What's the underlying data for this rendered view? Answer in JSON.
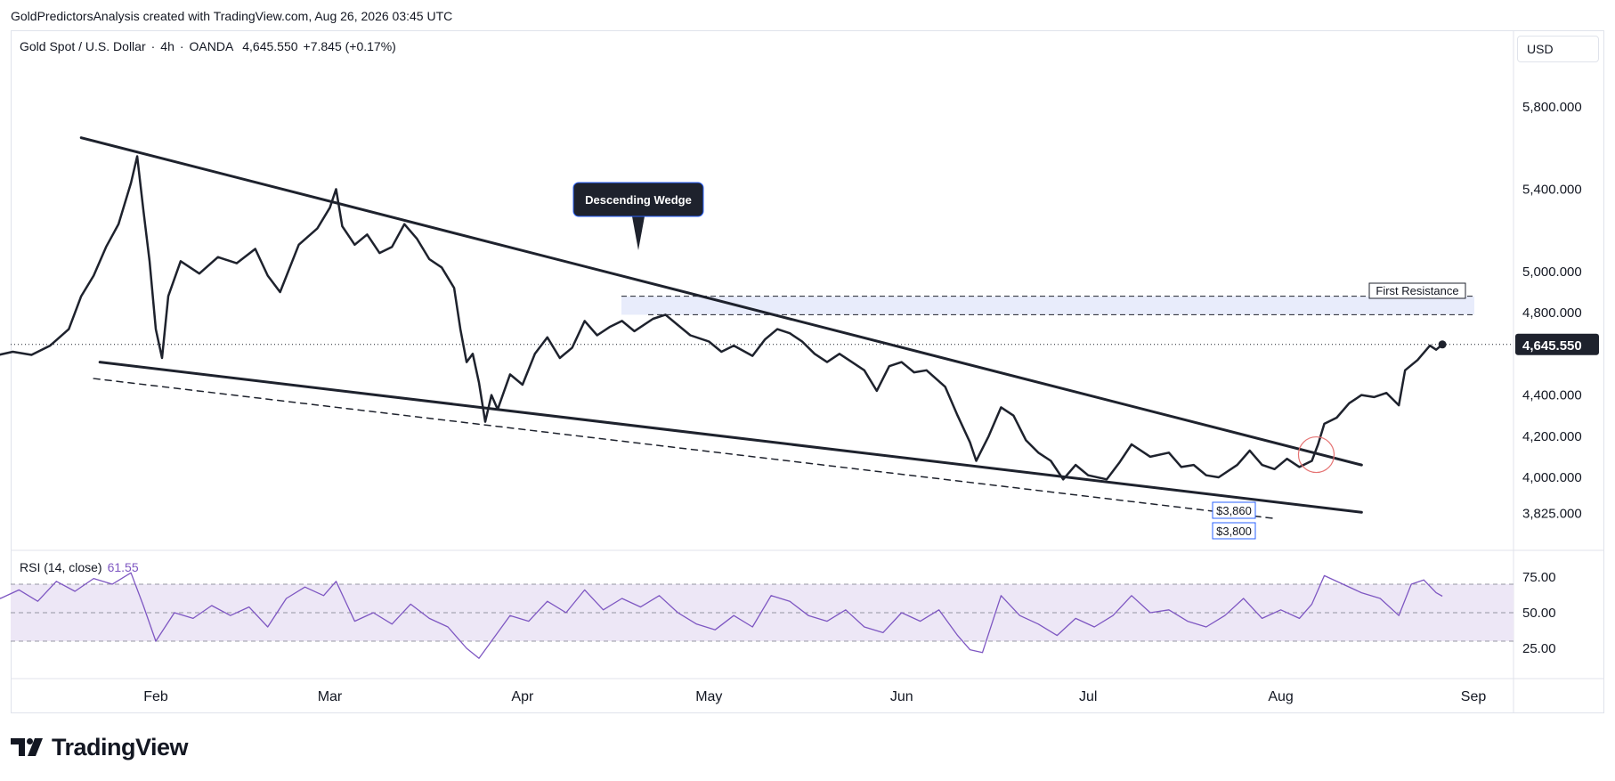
{
  "header": {
    "attribution": "GoldPredictorsAnalysis created with TradingView.com, Aug 26, 2026 03:45 UTC"
  },
  "legend": {
    "symbol": "Gold Spot / U.S. Dollar",
    "interval": "4h",
    "source": "OANDA",
    "last": "4,645.550",
    "change": "+7.845 (+0.17%)"
  },
  "currency": "USD",
  "rsi": {
    "label": "RSI (14, close)",
    "value": "61.55"
  },
  "footer": {
    "brand": "TradingView"
  },
  "colors": {
    "price_line": "#1e222d",
    "rsi_line": "#7e57c2",
    "rsi_band": "#ede7f6",
    "resistance_zone": "#e8ecfb",
    "callout_bg": "#1e222d",
    "callout_border": "#2962ff",
    "breakout_circle": "#e57373"
  },
  "chart_data": [
    {
      "type": "line",
      "series": [
        {
          "name": "Gold Spot / U.S. Dollar",
          "values": [
            [
              "2026-01-01",
              4460
            ],
            [
              "2026-01-03",
              4520
            ],
            [
              "2026-01-06",
              4590
            ],
            [
              "2026-01-09",
              4610
            ],
            [
              "2026-01-12",
              4595
            ],
            [
              "2026-01-15",
              4640
            ],
            [
              "2026-01-18",
              4720
            ],
            [
              "2026-01-20",
              4880
            ],
            [
              "2026-01-22",
              4980
            ],
            [
              "2026-01-24",
              5120
            ],
            [
              "2026-01-26",
              5230
            ],
            [
              "2026-01-28",
              5430
            ],
            [
              "2026-01-29",
              5560
            ],
            [
              "2026-01-30",
              5300
            ],
            [
              "2026-01-31",
              5050
            ],
            [
              "2026-02-01",
              4720
            ],
            [
              "2026-02-02",
              4580
            ],
            [
              "2026-02-03",
              4880
            ],
            [
              "2026-02-05",
              5050
            ],
            [
              "2026-02-08",
              4990
            ],
            [
              "2026-02-11",
              5070
            ],
            [
              "2026-02-14",
              5040
            ],
            [
              "2026-02-17",
              5110
            ],
            [
              "2026-02-19",
              4980
            ],
            [
              "2026-02-21",
              4900
            ],
            [
              "2026-02-24",
              5130
            ],
            [
              "2026-02-27",
              5210
            ],
            [
              "2026-03-01",
              5310
            ],
            [
              "2026-03-02",
              5400
            ],
            [
              "2026-03-03",
              5220
            ],
            [
              "2026-03-05",
              5130
            ],
            [
              "2026-03-07",
              5180
            ],
            [
              "2026-03-09",
              5090
            ],
            [
              "2026-03-11",
              5120
            ],
            [
              "2026-03-13",
              5230
            ],
            [
              "2026-03-15",
              5160
            ],
            [
              "2026-03-17",
              5060
            ],
            [
              "2026-03-19",
              5020
            ],
            [
              "2026-03-21",
              4920
            ],
            [
              "2026-03-22",
              4720
            ],
            [
              "2026-03-23",
              4560
            ],
            [
              "2026-03-24",
              4600
            ],
            [
              "2026-03-25",
              4460
            ],
            [
              "2026-03-26",
              4270
            ],
            [
              "2026-03-27",
              4400
            ],
            [
              "2026-03-28",
              4330
            ],
            [
              "2026-03-30",
              4500
            ],
            [
              "2026-04-01",
              4450
            ],
            [
              "2026-04-03",
              4600
            ],
            [
              "2026-04-05",
              4680
            ],
            [
              "2026-04-07",
              4580
            ],
            [
              "2026-04-09",
              4630
            ],
            [
              "2026-04-11",
              4760
            ],
            [
              "2026-04-13",
              4690
            ],
            [
              "2026-04-15",
              4730
            ],
            [
              "2026-04-17",
              4760
            ],
            [
              "2026-04-19",
              4710
            ],
            [
              "2026-04-22",
              4770
            ],
            [
              "2026-04-24",
              4790
            ],
            [
              "2026-04-26",
              4740
            ],
            [
              "2026-04-28",
              4690
            ],
            [
              "2026-05-01",
              4660
            ],
            [
              "2026-05-03",
              4610
            ],
            [
              "2026-05-05",
              4640
            ],
            [
              "2026-05-08",
              4590
            ],
            [
              "2026-05-10",
              4670
            ],
            [
              "2026-05-12",
              4720
            ],
            [
              "2026-05-14",
              4700
            ],
            [
              "2026-05-16",
              4660
            ],
            [
              "2026-05-18",
              4600
            ],
            [
              "2026-05-20",
              4560
            ],
            [
              "2026-05-22",
              4600
            ],
            [
              "2026-05-24",
              4560
            ],
            [
              "2026-05-26",
              4520
            ],
            [
              "2026-05-28",
              4420
            ],
            [
              "2026-05-30",
              4540
            ],
            [
              "2026-06-01",
              4560
            ],
            [
              "2026-06-03",
              4510
            ],
            [
              "2026-06-05",
              4520
            ],
            [
              "2026-06-08",
              4440
            ],
            [
              "2026-06-10",
              4300
            ],
            [
              "2026-06-12",
              4170
            ],
            [
              "2026-06-13",
              4080
            ],
            [
              "2026-06-15",
              4200
            ],
            [
              "2026-06-17",
              4340
            ],
            [
              "2026-06-19",
              4300
            ],
            [
              "2026-06-21",
              4180
            ],
            [
              "2026-06-23",
              4120
            ],
            [
              "2026-06-25",
              4080
            ],
            [
              "2026-06-27",
              3990
            ],
            [
              "2026-06-29",
              4060
            ],
            [
              "2026-07-01",
              4010
            ],
            [
              "2026-07-04",
              3990
            ],
            [
              "2026-07-06",
              4070
            ],
            [
              "2026-07-08",
              4160
            ],
            [
              "2026-07-11",
              4100
            ],
            [
              "2026-07-14",
              4120
            ],
            [
              "2026-07-16",
              4050
            ],
            [
              "2026-07-18",
              4060
            ],
            [
              "2026-07-20",
              4010
            ],
            [
              "2026-07-22",
              4000
            ],
            [
              "2026-07-25",
              4060
            ],
            [
              "2026-07-27",
              4130
            ],
            [
              "2026-07-29",
              4060
            ],
            [
              "2026-07-31",
              4040
            ],
            [
              "2026-08-02",
              4090
            ],
            [
              "2026-08-04",
              4050
            ],
            [
              "2026-08-06",
              4080
            ],
            [
              "2026-08-07",
              4160
            ],
            [
              "2026-08-08",
              4260
            ],
            [
              "2026-08-10",
              4290
            ],
            [
              "2026-08-12",
              4360
            ],
            [
              "2026-08-14",
              4400
            ],
            [
              "2026-08-16",
              4390
            ],
            [
              "2026-08-18",
              4410
            ],
            [
              "2026-08-20",
              4350
            ],
            [
              "2026-08-21",
              4520
            ],
            [
              "2026-08-23",
              4570
            ],
            [
              "2026-08-25",
              4640
            ],
            [
              "2026-08-26",
              4620
            ],
            [
              "2026-08-27",
              4645.55
            ]
          ]
        }
      ],
      "y_axis_ticks": [
        "5,800.000",
        "5,400.000",
        "5,000.000",
        "4,800.000",
        "4,400.000",
        "4,200.000",
        "4,000.000",
        "3,825.000"
      ],
      "last_price_label": "4,645.550",
      "x_axis_ticks": [
        "Feb",
        "Mar",
        "Apr",
        "May",
        "Jun",
        "Jul",
        "Aug",
        "Sep"
      ],
      "annotations": {
        "callout": "Descending Wedge",
        "zone_label": "First Resistance",
        "resistance_zone": [
          4790,
          4880
        ],
        "support_label_1": "$3,860",
        "support_label_2": "$3,800",
        "upper_trendline": [
          [
            "2026-01-20",
            5650
          ],
          [
            "2026-08-14",
            4060
          ]
        ],
        "lower_trendline": [
          [
            "2026-01-23",
            4560
          ],
          [
            "2026-08-14",
            3830
          ]
        ],
        "dashed_trendline": [
          [
            "2026-01-22",
            4480
          ],
          [
            "2026-07-31",
            3800
          ]
        ]
      }
    },
    {
      "type": "line",
      "series": [
        {
          "name": "RSI (14, close)",
          "values": [
            [
              "2026-01-01",
              62
            ],
            [
              "2026-01-04",
              68
            ],
            [
              "2026-01-07",
              60
            ],
            [
              "2026-01-10",
              66
            ],
            [
              "2026-01-13",
              58
            ],
            [
              "2026-01-16",
              72
            ],
            [
              "2026-01-19",
              65
            ],
            [
              "2026-01-22",
              74
            ],
            [
              "2026-01-25",
              70
            ],
            [
              "2026-01-28",
              78
            ],
            [
              "2026-01-30",
              55
            ],
            [
              "2026-02-01",
              30
            ],
            [
              "2026-02-04",
              50
            ],
            [
              "2026-02-07",
              46
            ],
            [
              "2026-02-10",
              55
            ],
            [
              "2026-02-13",
              48
            ],
            [
              "2026-02-16",
              54
            ],
            [
              "2026-02-19",
              40
            ],
            [
              "2026-02-22",
              60
            ],
            [
              "2026-02-25",
              68
            ],
            [
              "2026-02-28",
              62
            ],
            [
              "2026-03-02",
              72
            ],
            [
              "2026-03-05",
              44
            ],
            [
              "2026-03-08",
              50
            ],
            [
              "2026-03-11",
              42
            ],
            [
              "2026-03-14",
              56
            ],
            [
              "2026-03-17",
              46
            ],
            [
              "2026-03-20",
              40
            ],
            [
              "2026-03-23",
              25
            ],
            [
              "2026-03-25",
              18
            ],
            [
              "2026-03-27",
              30
            ],
            [
              "2026-03-30",
              48
            ],
            [
              "2026-04-02",
              44
            ],
            [
              "2026-04-05",
              58
            ],
            [
              "2026-04-08",
              50
            ],
            [
              "2026-04-11",
              66
            ],
            [
              "2026-04-14",
              52
            ],
            [
              "2026-04-17",
              60
            ],
            [
              "2026-04-20",
              54
            ],
            [
              "2026-04-23",
              62
            ],
            [
              "2026-04-26",
              50
            ],
            [
              "2026-04-29",
              42
            ],
            [
              "2026-05-02",
              38
            ],
            [
              "2026-05-05",
              48
            ],
            [
              "2026-05-08",
              40
            ],
            [
              "2026-05-11",
              62
            ],
            [
              "2026-05-14",
              58
            ],
            [
              "2026-05-17",
              48
            ],
            [
              "2026-05-20",
              44
            ],
            [
              "2026-05-23",
              52
            ],
            [
              "2026-05-26",
              40
            ],
            [
              "2026-05-29",
              36
            ],
            [
              "2026-06-01",
              50
            ],
            [
              "2026-06-04",
              44
            ],
            [
              "2026-06-07",
              52
            ],
            [
              "2026-06-10",
              34
            ],
            [
              "2026-06-12",
              24
            ],
            [
              "2026-06-14",
              22
            ],
            [
              "2026-06-17",
              62
            ],
            [
              "2026-06-20",
              48
            ],
            [
              "2026-06-23",
              42
            ],
            [
              "2026-06-26",
              34
            ],
            [
              "2026-06-29",
              46
            ],
            [
              "2026-07-02",
              40
            ],
            [
              "2026-07-05",
              48
            ],
            [
              "2026-07-08",
              62
            ],
            [
              "2026-07-11",
              50
            ],
            [
              "2026-07-14",
              52
            ],
            [
              "2026-07-17",
              44
            ],
            [
              "2026-07-20",
              40
            ],
            [
              "2026-07-23",
              48
            ],
            [
              "2026-07-26",
              60
            ],
            [
              "2026-07-29",
              46
            ],
            [
              "2026-08-01",
              52
            ],
            [
              "2026-08-04",
              46
            ],
            [
              "2026-08-06",
              56
            ],
            [
              "2026-08-08",
              76
            ],
            [
              "2026-08-11",
              70
            ],
            [
              "2026-08-14",
              64
            ],
            [
              "2026-08-17",
              60
            ],
            [
              "2026-08-20",
              48
            ],
            [
              "2026-08-22",
              70
            ],
            [
              "2026-08-24",
              73
            ],
            [
              "2026-08-26",
              64
            ],
            [
              "2026-08-27",
              61.55
            ]
          ]
        }
      ],
      "y_axis_ticks": [
        "75.00",
        "50.00",
        "25.00"
      ],
      "bands": {
        "upper": 70,
        "middle": 50,
        "lower": 30
      }
    }
  ]
}
